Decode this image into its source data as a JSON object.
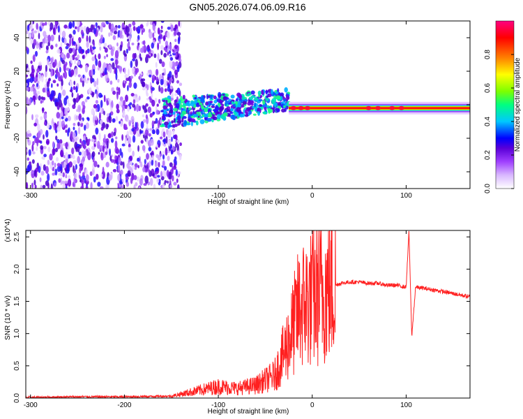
{
  "title": "GN05.2026.074.06.09.R16",
  "chart_data": [
    {
      "type": "heatmap",
      "xlabel": "Height of straight line (km)",
      "ylabel": "Frequency (Hz)",
      "xlim": [
        -305,
        168
      ],
      "ylim": [
        -50,
        50
      ],
      "xticks": [
        -300,
        -200,
        -100,
        0,
        100
      ],
      "yticks": [
        -40,
        -20,
        0,
        20,
        40
      ],
      "colorbar": {
        "label": "Normalized spectral amplitude",
        "range": [
          0,
          1
        ],
        "ticks": [
          "0.0",
          "0.2",
          "0.4",
          "0.6",
          "0.8"
        ],
        "colors": [
          "#ffffff",
          "#d9b8ff",
          "#a040ff",
          "#5a00d8",
          "#0000ff",
          "#00c8ff",
          "#00ff80",
          "#7dff00",
          "#ffff00",
          "#ff8000",
          "#ff0000",
          "#ff0080"
        ]
      },
      "regions": [
        {
          "name": "noise",
          "x": [
            -305,
            -140
          ],
          "freq": [
            -50,
            50
          ],
          "amplitude": 0.25
        },
        {
          "name": "transition",
          "x": [
            -160,
            -25
          ],
          "freq_center": [
            -5,
            3
          ],
          "amplitude": 0.45
        },
        {
          "name": "carrier",
          "x": [
            -25,
            168
          ],
          "freq_center": -2,
          "amplitude": 0.95
        }
      ]
    },
    {
      "type": "line",
      "xlabel": "Height of straight line (km)",
      "ylabel": "SNR (10 * v/v)",
      "y_multiplier": "(x10^4)",
      "xlim": [
        -305,
        168
      ],
      "ylim": [
        0,
        2.6
      ],
      "xticks": [
        -300,
        -200,
        -100,
        0,
        100
      ],
      "yticks": [
        "0.0",
        "0.5",
        "1.0",
        "1.5",
        "2.0",
        "2.5"
      ],
      "series": [
        {
          "color": "#ff2020",
          "x": [
            -305,
            -250,
            -200,
            -150,
            -140,
            -120,
            -100,
            -80,
            -60,
            -40,
            -30,
            -20,
            -15,
            -10,
            0,
            10,
            20,
            30,
            40,
            50,
            60,
            70,
            80,
            90,
            100,
            103,
            106,
            110,
            120,
            140,
            168
          ],
          "y": [
            0.01,
            0.02,
            0.02,
            0.03,
            0.06,
            0.12,
            0.18,
            0.15,
            0.2,
            0.35,
            0.7,
            1.1,
            1.35,
            1.45,
            1.55,
            1.65,
            1.72,
            1.78,
            1.8,
            1.8,
            1.78,
            1.78,
            1.75,
            1.75,
            1.72,
            2.6,
            0.95,
            1.72,
            1.7,
            1.65,
            1.57
          ]
        }
      ]
    }
  ]
}
